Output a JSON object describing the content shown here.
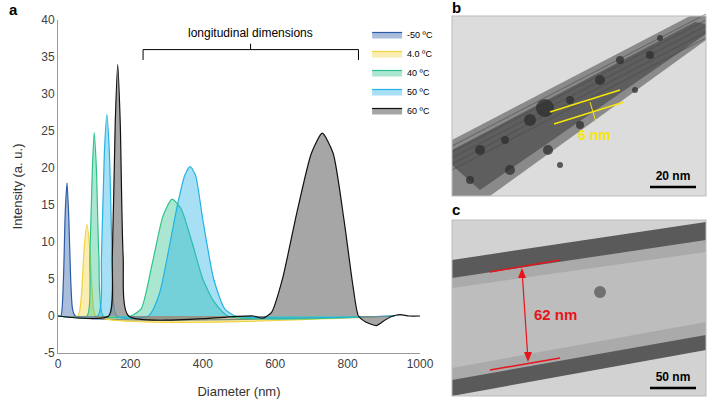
{
  "chart_data": {
    "type": "area",
    "panel_label": "a",
    "x_label": "Diameter (nm)",
    "y_label": "Intensity (a. u.)",
    "xlim": [
      0,
      1000
    ],
    "xticks": [
      0,
      200,
      400,
      600,
      800,
      1000
    ],
    "ylim": [
      -5,
      40
    ],
    "yticks": [
      -5,
      0,
      5,
      10,
      15,
      20,
      25,
      30,
      35,
      40
    ],
    "grid": false,
    "legend": "top-right",
    "marker": "circle",
    "series": [
      {
        "name": "-50 ºC",
        "color": "#2a5ca8",
        "x": [
          0,
          8,
          15,
          20,
          25,
          30,
          35,
          40,
          48,
          930
        ],
        "values": [
          0,
          0,
          5,
          14,
          18,
          13,
          5,
          1,
          0,
          0
        ]
      },
      {
        "name": "4.0 ºC",
        "color": "#f2d33c",
        "x": [
          0,
          55,
          65,
          72,
          80,
          88,
          95,
          105,
          930
        ],
        "values": [
          0,
          0,
          3,
          9,
          12.4,
          9,
          3,
          0,
          0
        ]
      },
      {
        "name": "40 ºC",
        "color": "#2ec28a",
        "x": [
          0,
          80,
          88,
          95,
          100,
          106,
          113,
          125,
          200,
          230,
          260,
          290,
          315,
          340,
          370,
          400,
          430,
          470,
          930
        ],
        "values": [
          0,
          0,
          8,
          20,
          24.8,
          20,
          8,
          0,
          0,
          1,
          7,
          13.5,
          15.8,
          14.5,
          10,
          5,
          2,
          0,
          0
        ]
      },
      {
        "name": "50 ºC",
        "color": "#22b2e6",
        "x": [
          0,
          110,
          120,
          128,
          135,
          142,
          150,
          162,
          250,
          280,
          310,
          330,
          350,
          365,
          380,
          400,
          430,
          460,
          490,
          930
        ],
        "values": [
          0,
          0,
          8,
          22,
          27.2,
          22,
          8,
          0,
          0,
          3,
          10,
          15,
          19,
          20.2,
          19,
          13,
          5,
          1,
          0,
          0
        ]
      },
      {
        "name": "60 ºC",
        "color": "#808080",
        "x": [
          0,
          140,
          150,
          158,
          165,
          172,
          180,
          195,
          540,
          565,
          590,
          620,
          660,
          700,
          730,
          760,
          790,
          815,
          830,
          850,
          880,
          905,
          925,
          945,
          970,
          1000
        ],
        "values": [
          0,
          0,
          8,
          26,
          34,
          26,
          8,
          0,
          0,
          -0.3,
          0.5,
          5,
          14,
          22,
          24.7,
          22,
          13,
          4,
          0,
          -0.8,
          -1.3,
          -0.5,
          0,
          0.2,
          0,
          0
        ]
      }
    ],
    "annotations": [
      {
        "text": "longitudinal dimensions",
        "x": 532,
        "y": 37,
        "bracket": [
          235,
          830
        ],
        "bracket_y": 36
      }
    ]
  },
  "images": [
    {
      "panel_label": "b",
      "measure": "6 nm",
      "measure_color": "#f5e60a",
      "scale_bar": "20 nm"
    },
    {
      "panel_label": "c",
      "measure": "62 nm",
      "measure_color": "#e8141b",
      "scale_bar": "50 nm"
    }
  ]
}
